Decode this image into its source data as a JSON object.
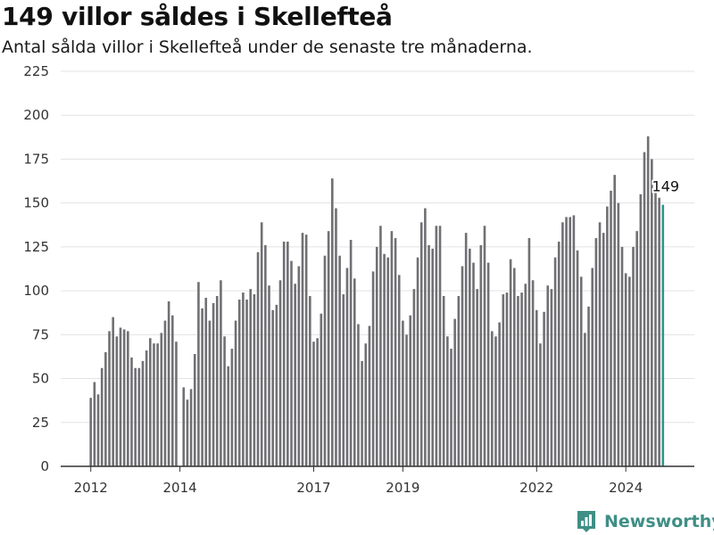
{
  "header": {
    "title": "149 villor såldes i Skellefteå",
    "subtitle": "Antal sålda villor i Skellefteå under de senaste tre månaderna."
  },
  "brand": {
    "name": "Newsworthy",
    "icon": "bar-chart-logo-icon"
  },
  "colors": {
    "bar": "#707074",
    "highlight": "#2a9b8e",
    "grid": "#e3e3e3",
    "axis": "#333333",
    "brand": "#3f8f86"
  },
  "chart_data": {
    "type": "bar",
    "title": "149 villor såldes i Skellefteå",
    "subtitle": "Antal sålda villor i Skellefteå under de senaste tre månaderna.",
    "xlabel": "",
    "ylabel": "",
    "ylim": [
      0,
      225
    ],
    "yticks": [
      0,
      25,
      50,
      75,
      100,
      125,
      150,
      175,
      200,
      225
    ],
    "xticks": [
      "2012",
      "2014",
      "2017",
      "2019",
      "2022",
      "2024"
    ],
    "grid": true,
    "x_start": "2012-01",
    "frequency": "monthly",
    "highlight_label": "149",
    "values": [
      39,
      48,
      41,
      56,
      65,
      77,
      85,
      74,
      79,
      78,
      77,
      62,
      56,
      56,
      60,
      66,
      73,
      70,
      70,
      76,
      83,
      94,
      86,
      71,
      0,
      45,
      38,
      44,
      64,
      105,
      90,
      96,
      83,
      93,
      97,
      106,
      74,
      57,
      67,
      83,
      95,
      99,
      95,
      101,
      98,
      122,
      139,
      126,
      103,
      89,
      92,
      106,
      128,
      128,
      117,
      104,
      114,
      133,
      132,
      97,
      71,
      73,
      87,
      120,
      134,
      164,
      147,
      120,
      98,
      113,
      129,
      107,
      81,
      60,
      70,
      80,
      111,
      125,
      137,
      121,
      119,
      134,
      130,
      109,
      83,
      75,
      86,
      101,
      119,
      139,
      147,
      126,
      124,
      137,
      137,
      97,
      74,
      67,
      84,
      97,
      114,
      133,
      124,
      116,
      101,
      126,
      137,
      116,
      77,
      74,
      82,
      98,
      99,
      118,
      113,
      97,
      99,
      104,
      130,
      106,
      89,
      70,
      88,
      103,
      101,
      119,
      128,
      139,
      142,
      142,
      143,
      123,
      108,
      76,
      91,
      113,
      130,
      139,
      133,
      148,
      157,
      166,
      150,
      125,
      110,
      108,
      125,
      134,
      155,
      179,
      188,
      175,
      156,
      153,
      149
    ]
  }
}
